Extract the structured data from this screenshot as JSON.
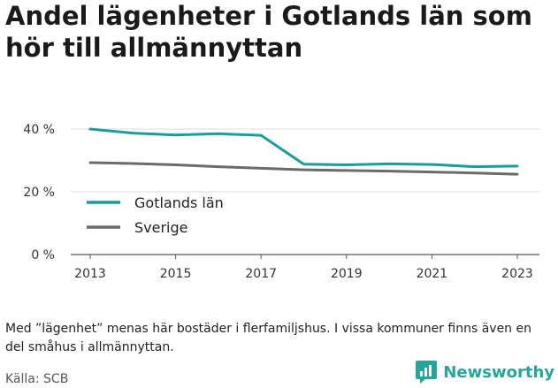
{
  "header": {
    "title": "Andel lägenheter i Gotlands län som hör till allmännyttan"
  },
  "chart_data": {
    "type": "line",
    "title": "Andel lägenheter i Gotlands län som hör till allmännyttan",
    "xlabel": "",
    "ylabel": "",
    "x": [
      2013,
      2014,
      2015,
      2016,
      2017,
      2018,
      2019,
      2020,
      2021,
      2022,
      2023
    ],
    "x_ticks": [
      "2013",
      "2015",
      "2017",
      "2019",
      "2021",
      "2023"
    ],
    "y_ticks": [
      "0 %",
      "20 %",
      "40 %"
    ],
    "ylim": [
      0,
      42
    ],
    "grid": true,
    "legend_position": "center-left",
    "series": [
      {
        "name": "Gotlands län",
        "color": "#1a9e9a",
        "values": [
          40.0,
          38.7,
          38.1,
          38.5,
          38.0,
          28.8,
          28.6,
          28.9,
          28.7,
          28.0,
          28.2
        ]
      },
      {
        "name": "Sverige",
        "color": "#6b696e",
        "values": [
          29.3,
          29.0,
          28.6,
          28.0,
          27.5,
          27.0,
          26.8,
          26.6,
          26.3,
          26.0,
          25.6
        ]
      }
    ]
  },
  "footer": {
    "note": "Med ”lägenhet” menas här bostäder i flerfamiljshus. I vissa kommuner finns även en del småhus i allmännyttan.",
    "source": "Källa: SCB",
    "brand": "Newsworthy",
    "brand_color": "#26a69a",
    "brand_icon": "bar-chart-speech-bubble-icon"
  }
}
